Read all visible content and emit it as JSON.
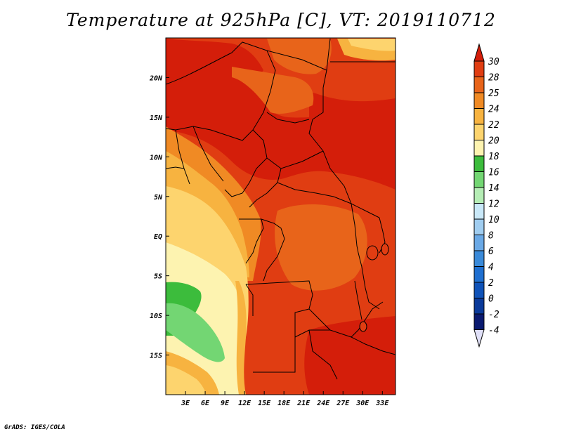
{
  "title": "Temperature at 925hPa [C], VT: 2019110712",
  "credit": "GrADS: IGES/COLA",
  "map": {
    "lat_labels": [
      "20N",
      "15N",
      "10N",
      "5N",
      "EQ",
      "5S",
      "10S",
      "15S"
    ],
    "lat_values": [
      20,
      15,
      10,
      5,
      0,
      -5,
      -10,
      -15
    ],
    "lon_labels": [
      "3E",
      "6E",
      "9E",
      "12E",
      "15E",
      "18E",
      "21E",
      "24E",
      "27E",
      "30E",
      "33E"
    ],
    "lon_values": [
      3,
      6,
      9,
      12,
      15,
      18,
      21,
      24,
      27,
      30,
      33
    ],
    "lon_range": [
      0,
      35
    ],
    "lat_range": [
      -20,
      25
    ],
    "region": "Central Africa"
  },
  "colorbar": {
    "labels": [
      "30",
      "28",
      "25",
      "24",
      "22",
      "20",
      "18",
      "16",
      "14",
      "12",
      "10",
      "8",
      "6",
      "4",
      "2",
      "0",
      "-2",
      "-4"
    ],
    "colors": [
      "#d41e0a",
      "#e03d12",
      "#e8641a",
      "#f08a24",
      "#f7b340",
      "#fdd46e",
      "#fdf3b0",
      "#3cbc3c",
      "#73d673",
      "#b5edb5",
      "#c9e8f8",
      "#a0cdf0",
      "#6aa9e6",
      "#3a8ad9",
      "#1f6fd0",
      "#0f52b8",
      "#0a3a9a",
      "#0a1a70"
    ],
    "overflow_high": "#d41e0a",
    "overflow_low": "#e0e0f8"
  }
}
